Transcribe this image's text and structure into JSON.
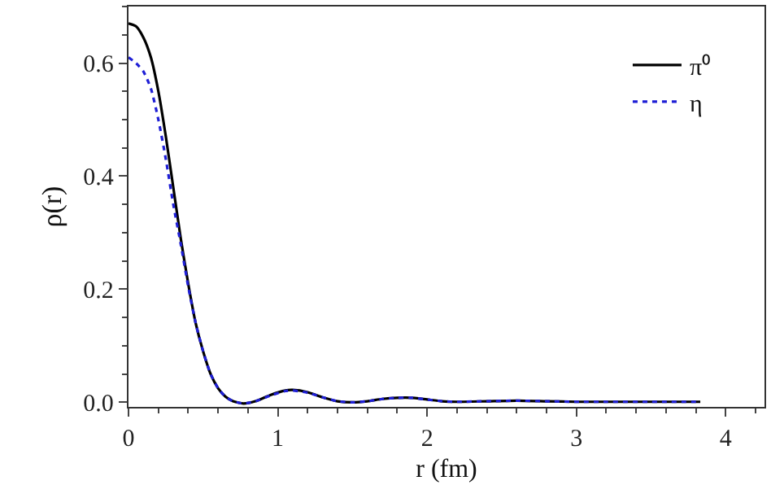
{
  "chart_data": {
    "type": "line",
    "xlabel": "r (fm)",
    "ylabel": "ρ(r)",
    "xlim": [
      0,
      4.26
    ],
    "xticks": [
      0,
      1,
      2,
      3,
      4
    ],
    "ylim": [
      -0.008,
      0.7
    ],
    "yticks": [
      {
        "value": 0,
        "label": "0.0"
      },
      0.2,
      0.4,
      0.6
    ],
    "legend": "top right",
    "marker": "none",
    "series": [
      {
        "name": "π⁰",
        "color": "#000000",
        "line_style": "solid",
        "x": [
          0,
          0.05,
          0.1,
          0.15,
          0.2,
          0.25,
          0.3,
          0.35,
          0.4,
          0.45,
          0.5,
          0.55,
          0.6,
          0.65,
          0.7,
          0.77,
          0.85,
          0.95,
          1.05,
          1.1,
          1.2,
          1.3,
          1.4,
          1.5,
          1.6,
          1.7,
          1.8,
          1.9,
          2.0,
          2.1,
          2.2,
          2.4,
          2.6,
          2.8,
          3.0,
          3.2,
          3.5,
          3.83
        ],
        "values": [
          0.67,
          0.665,
          0.645,
          0.61,
          0.55,
          0.47,
          0.38,
          0.29,
          0.21,
          0.14,
          0.09,
          0.05,
          0.025,
          0.01,
          0.002,
          -0.002,
          0.002,
          0.013,
          0.021,
          0.022,
          0.018,
          0.009,
          0.002,
          0,
          0.002,
          0.006,
          0.008,
          0.008,
          0.005,
          0.002,
          0.001,
          0.002,
          0.003,
          0.002,
          0.001,
          0.001,
          0.001,
          0.001
        ]
      },
      {
        "name": "η",
        "color": "#1f1fd6",
        "line_style": "dotted",
        "x": [
          0,
          0.05,
          0.1,
          0.15,
          0.2,
          0.25,
          0.3,
          0.35,
          0.4,
          0.45,
          0.5,
          0.55,
          0.6,
          0.65,
          0.7,
          0.77,
          0.85,
          0.95,
          1.05,
          1.1,
          1.2,
          1.3,
          1.4,
          1.5,
          1.6,
          1.7,
          1.8,
          1.9,
          2.0,
          2.1,
          2.2,
          2.4,
          2.6,
          2.8,
          3.0,
          3.2,
          3.5,
          3.83
        ],
        "values": [
          0.61,
          0.6,
          0.585,
          0.555,
          0.5,
          0.43,
          0.35,
          0.28,
          0.205,
          0.14,
          0.09,
          0.05,
          0.025,
          0.01,
          0.002,
          -0.002,
          0.002,
          0.012,
          0.02,
          0.021,
          0.017,
          0.009,
          0.002,
          0,
          0.002,
          0.006,
          0.008,
          0.008,
          0.005,
          0.002,
          0.001,
          0.002,
          0.003,
          0.002,
          0.001,
          0.001,
          0.001,
          0.001
        ]
      }
    ]
  }
}
